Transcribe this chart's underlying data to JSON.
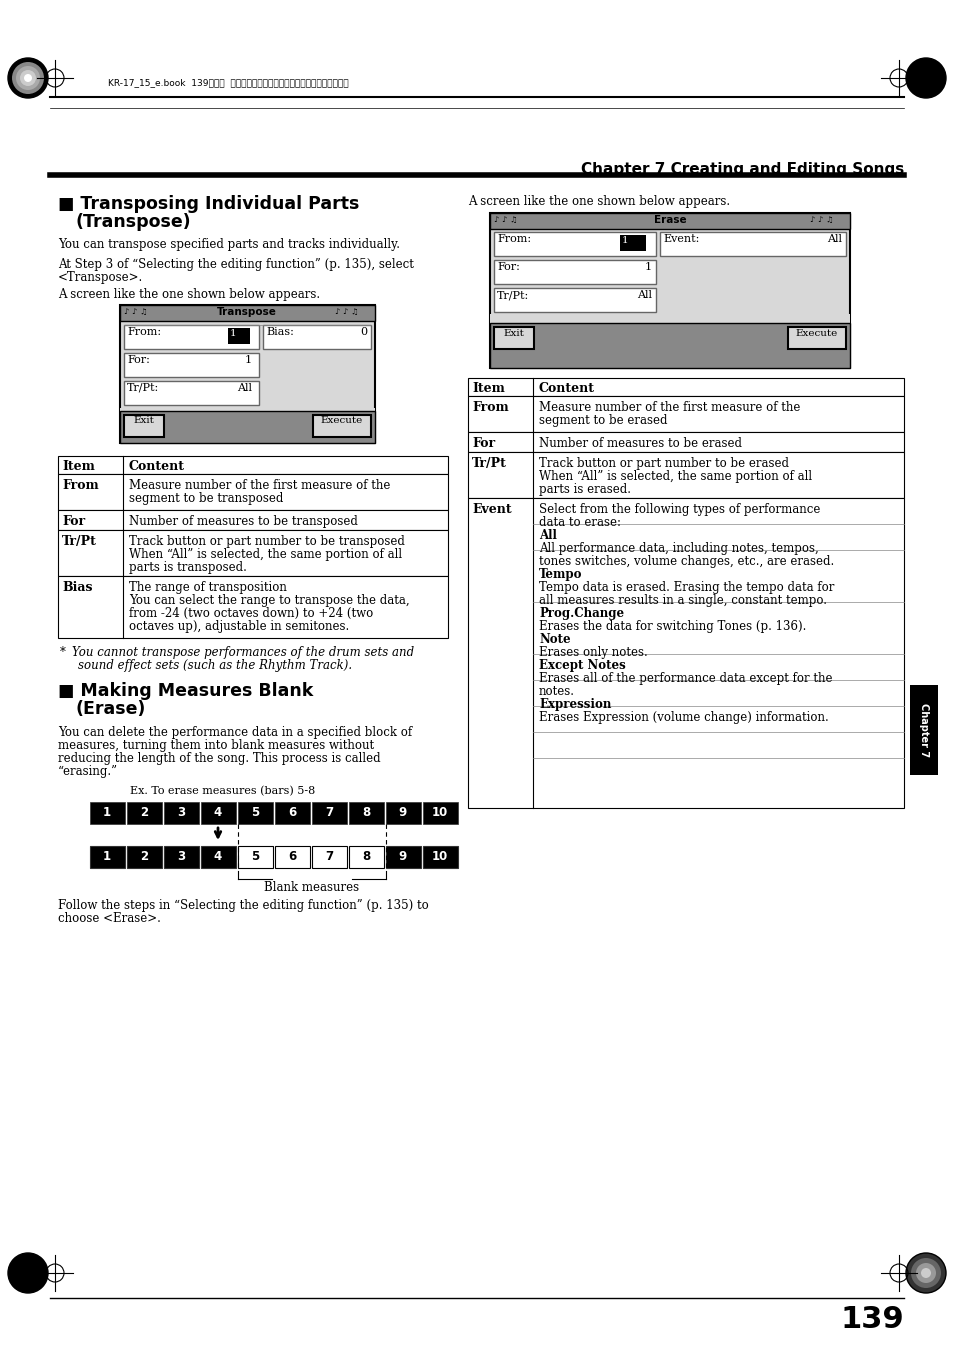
{
  "page_bg": "#ffffff",
  "header_text": "KR-17_15_e.book  139ページ  ２００４年１２月６日　月曜日　午後１時５４分",
  "chapter_title": "Chapter 7 Creating and Editing Songs",
  "page_number": "139"
}
